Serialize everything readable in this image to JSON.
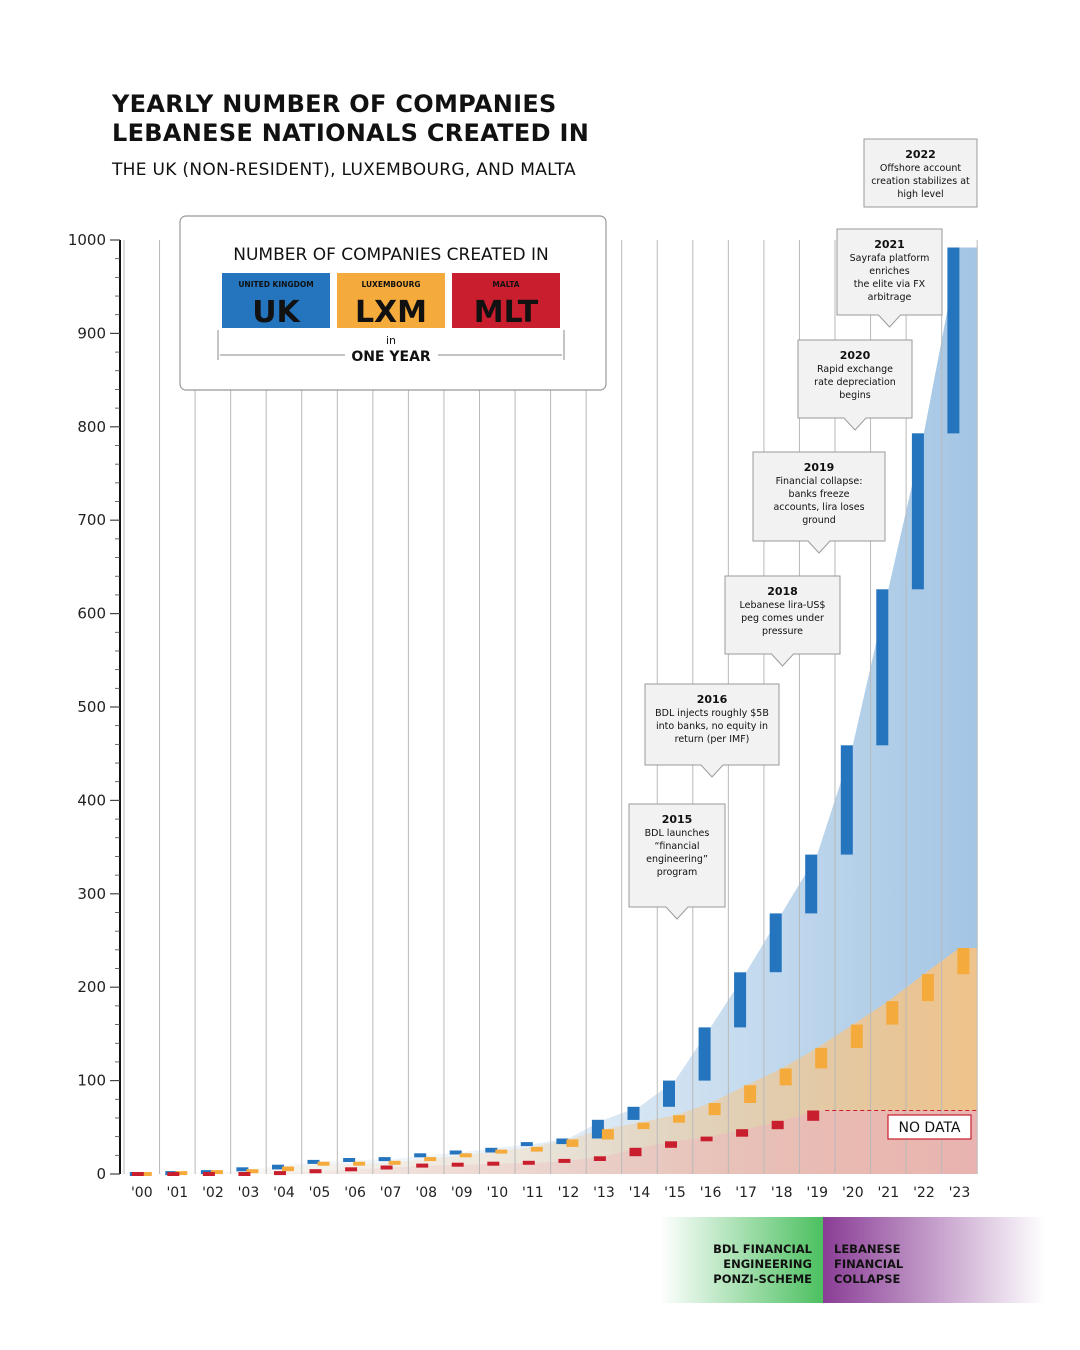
{
  "header": {
    "title_line1": "YEARLY NUMBER OF COMPANIES",
    "title_line2": "LEBANESE NATIONALS CREATED IN",
    "subtitle": "THE UK (NON-RESIDENT), LUXEMBOURG, AND MALTA"
  },
  "legend": {
    "heading": "NUMBER OF COMPANIES CREATED IN",
    "items": [
      {
        "small": "UNITED KINGDOM",
        "big": "UK",
        "color": "#2474be"
      },
      {
        "small": "LUXEMBOURG",
        "big": "LXM",
        "color": "#f5aa3c"
      },
      {
        "small": "MALTA",
        "big": "MLT",
        "color": "#c81e2d"
      }
    ],
    "in_label": "in",
    "period_label": "ONE YEAR"
  },
  "no_data_label": "NO DATA",
  "phases": [
    {
      "label_lines": [
        "BDL FINANCIAL",
        "ENGINEERING",
        "PONZI-SCHEME"
      ],
      "color": "#4cc060"
    },
    {
      "label_lines": [
        "LEBANESE",
        "FINANCIAL",
        "COLLAPSE"
      ],
      "color": "#8a3d96"
    }
  ],
  "annotations": [
    {
      "year": "2015",
      "lines": [
        "BDL launches",
        "“financial",
        "engineering”",
        "program"
      ]
    },
    {
      "year": "2016",
      "lines": [
        "BDL injects roughly $5B",
        "into banks, no equity in",
        "return (per IMF)"
      ]
    },
    {
      "year": "2018",
      "lines": [
        "Lebanese lira-US$",
        "peg comes under",
        "pressure"
      ]
    },
    {
      "year": "2019",
      "lines": [
        "Financial collapse:",
        "banks freeze",
        "accounts, lira loses",
        "ground"
      ]
    },
    {
      "year": "2020",
      "lines": [
        "Rapid exchange",
        "rate depreciation",
        "begins"
      ]
    },
    {
      "year": "2021",
      "lines": [
        "Sayrafa platform",
        "enriches",
        "the elite via FX",
        "arbitrage"
      ]
    },
    {
      "year": "2022",
      "lines": [
        "Offshore account",
        "creation stabilizes at",
        "high level"
      ]
    }
  ],
  "chart_data": {
    "type": "bar",
    "categories": [
      "'00",
      "'01",
      "'02",
      "'03",
      "'04",
      "'05",
      "'06",
      "'07",
      "'08",
      "'09",
      "'10",
      "'11",
      "'12",
      "'13",
      "'14",
      "'15",
      "'16",
      "'17",
      "'18",
      "'19",
      "'20",
      "'21",
      "'22",
      "'23"
    ],
    "ylim": [
      0,
      1000
    ],
    "yticks": [
      0,
      100,
      200,
      300,
      400,
      500,
      600,
      700,
      800,
      900,
      1000
    ],
    "series": [
      {
        "name": "UK",
        "color": "#2474be",
        "values": [
          0,
          1,
          2,
          5,
          10,
          13,
          15,
          16,
          20,
          23,
          28,
          32,
          38,
          58,
          72,
          100,
          157,
          216,
          279,
          342,
          459,
          626,
          793,
          992
        ]
      },
      {
        "name": "LXM",
        "color": "#f5aa3c",
        "values": [
          0,
          1,
          2,
          3,
          8,
          11,
          11,
          12,
          16,
          20,
          24,
          29,
          37,
          48,
          55,
          63,
          76,
          95,
          113,
          135,
          160,
          185,
          214,
          242
        ]
      },
      {
        "name": "MLT",
        "color": "#c81e2d",
        "values": [
          0,
          0,
          0,
          0,
          1,
          3,
          5,
          7,
          9,
          10,
          11,
          12,
          14,
          19,
          28,
          35,
          40,
          48,
          57,
          68,
          null,
          null,
          null,
          null
        ]
      }
    ]
  }
}
